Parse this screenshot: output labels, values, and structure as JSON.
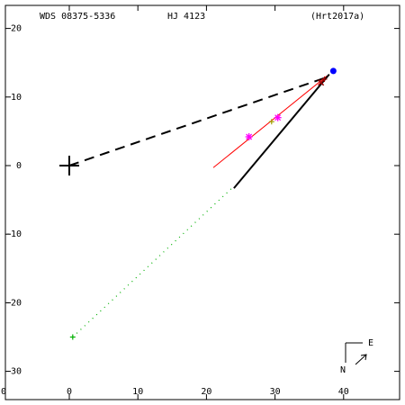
{
  "header": {
    "wds": "WDS 08375-5336",
    "name": "HJ 4123",
    "ref": "(Hrt2017a)"
  },
  "compass": {
    "east": "E",
    "north": "N"
  },
  "colors": {
    "axes": "#000000",
    "fit_line": "#ff0000",
    "obs_magenta": "#ff00ff",
    "obs_olive": "#a0a000",
    "obs_green": "#00b000",
    "obs_darkred": "#990000",
    "latest_blue": "#0000ff",
    "primary": "#000000"
  },
  "chart_data": {
    "type": "scatter",
    "xlim": [
      0,
      40
    ],
    "ylim": [
      -30,
      20
    ],
    "x_ticks": [
      0,
      10,
      20,
      30,
      40
    ],
    "y_ticks": [
      20,
      10,
      0,
      -10,
      -20,
      -30
    ],
    "x_tick_labels": [
      "0",
      "10",
      "20",
      "30",
      "40"
    ],
    "y_tick_labels": [
      "20",
      "10",
      "0",
      "-10",
      "-20",
      "-30"
    ],
    "x_edge_label": "0",
    "primary": [
      0,
      0
    ],
    "dashed_line": [
      [
        0,
        0
      ],
      [
        37.3,
        12.8
      ]
    ],
    "fit_line": [
      [
        21,
        -0.3
      ],
      [
        37.6,
        13.1
      ]
    ],
    "motion_line": [
      [
        24,
        -3.3
      ],
      [
        37.9,
        13.3
      ]
    ],
    "green_dotted_line": [
      [
        0.5,
        -25
      ],
      [
        23.8,
        -3.2
      ]
    ],
    "points": [
      {
        "x": 26.2,
        "y": 4.2,
        "marker": "star",
        "color": "magenta"
      },
      {
        "x": 30.4,
        "y": 7.0,
        "marker": "star",
        "color": "magenta"
      },
      {
        "x": 29.5,
        "y": 6.4,
        "marker": "plus",
        "color": "olive"
      },
      {
        "x": 0.5,
        "y": -25.0,
        "marker": "plus",
        "color": "green"
      },
      {
        "x": 37.2,
        "y": 12.6,
        "marker": "plus",
        "color": "darkred"
      },
      {
        "x": 36.7,
        "y": 12.1,
        "marker": "x",
        "color": "darkred"
      },
      {
        "x": 38.5,
        "y": 13.8,
        "marker": "dot",
        "color": "blue"
      }
    ]
  }
}
